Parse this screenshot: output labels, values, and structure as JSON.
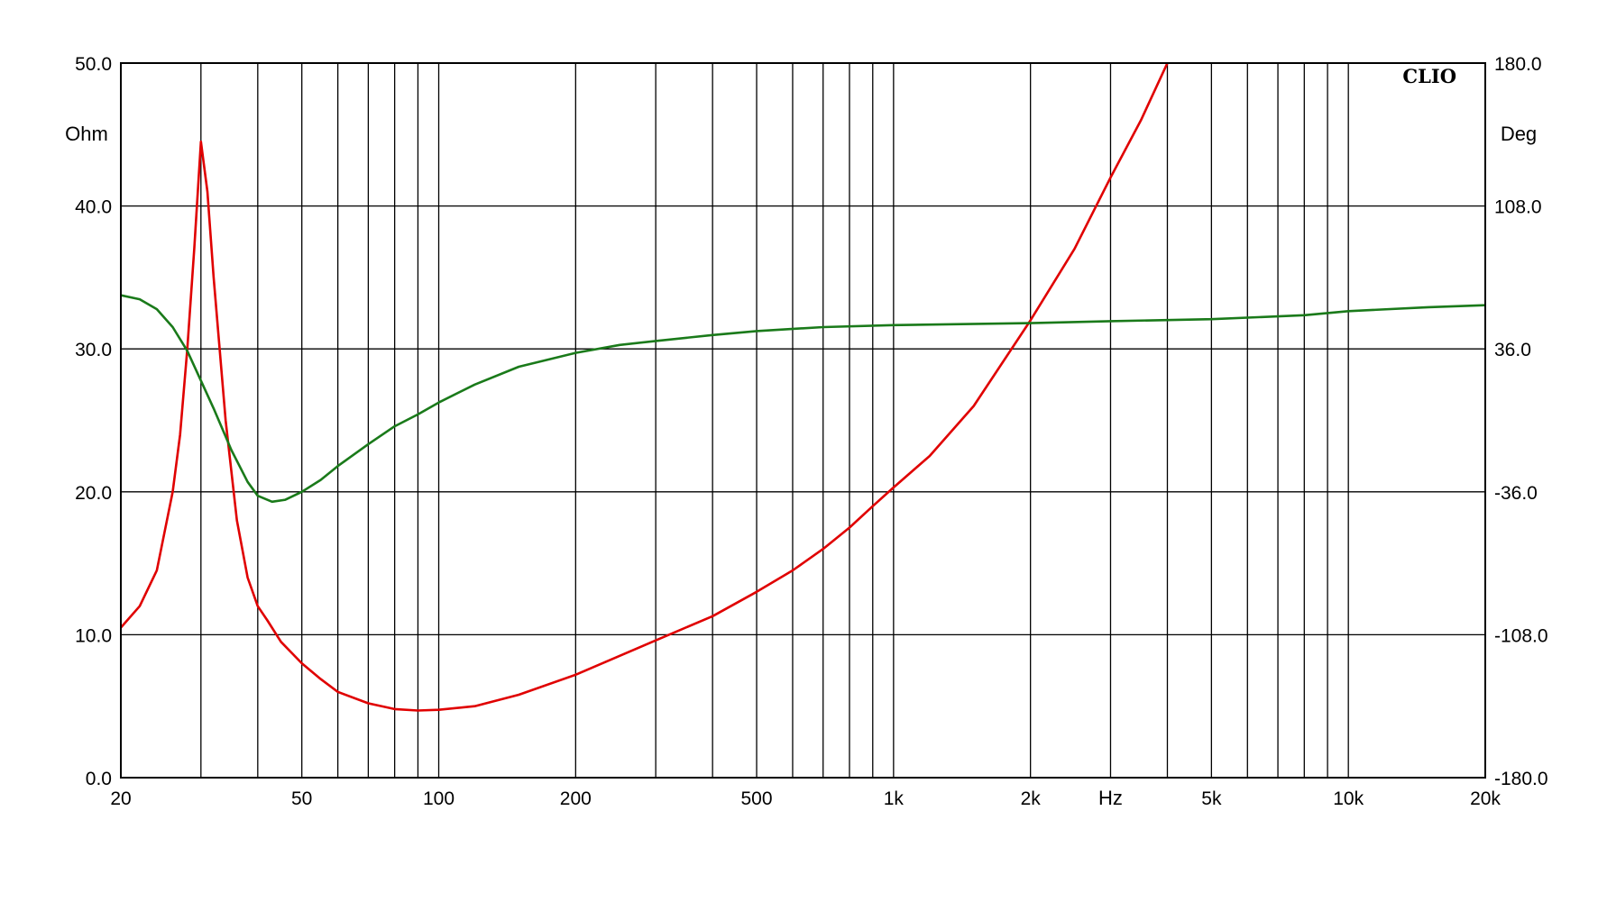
{
  "chart_data": {
    "type": "line",
    "brand": "CLIO",
    "x_unit": "Hz",
    "y_left_unit": "Ohm",
    "y_right_unit": "Deg",
    "x_scale": "log",
    "xlim": [
      20,
      20000
    ],
    "ylim_left": [
      0,
      50
    ],
    "ylim_right": [
      -180,
      180
    ],
    "x_tick_labels": [
      {
        "value": 20,
        "label": "20"
      },
      {
        "value": 50,
        "label": "50"
      },
      {
        "value": 100,
        "label": "100"
      },
      {
        "value": 200,
        "label": "200"
      },
      {
        "value": 500,
        "label": "500"
      },
      {
        "value": 1000,
        "label": "1k"
      },
      {
        "value": 2000,
        "label": "2k"
      },
      {
        "value": 5000,
        "label": "5k"
      },
      {
        "value": 10000,
        "label": "10k"
      },
      {
        "value": 20000,
        "label": "20k"
      }
    ],
    "x_unit_position": 3000,
    "y_left_ticks": [
      {
        "value": 0,
        "label": "0.0"
      },
      {
        "value": 10,
        "label": "10.0"
      },
      {
        "value": 20,
        "label": "20.0"
      },
      {
        "value": 30,
        "label": "30.0"
      },
      {
        "value": 40,
        "label": "40.0"
      },
      {
        "value": 50,
        "label": "50.0"
      }
    ],
    "y_right_ticks": [
      {
        "value": -180,
        "label": "-180.0"
      },
      {
        "value": -108,
        "label": "-108.0"
      },
      {
        "value": -36,
        "label": "-36.0"
      },
      {
        "value": 36,
        "label": "36.0"
      },
      {
        "value": 108,
        "label": "108.0"
      },
      {
        "value": 180,
        "label": "180.0"
      }
    ],
    "x_gridlines": [
      30,
      40,
      50,
      60,
      70,
      80,
      90,
      100,
      200,
      300,
      400,
      500,
      600,
      700,
      800,
      900,
      1000,
      2000,
      3000,
      4000,
      5000,
      6000,
      7000,
      8000,
      9000,
      10000
    ],
    "grid": true,
    "series": [
      {
        "axis": "left",
        "color": "#e00000",
        "points": [
          [
            20,
            10.5
          ],
          [
            22,
            12.0
          ],
          [
            24,
            14.5
          ],
          [
            26,
            20.0
          ],
          [
            27,
            24.0
          ],
          [
            28,
            30.0
          ],
          [
            29,
            37.0
          ],
          [
            30,
            44.5
          ],
          [
            31,
            41.0
          ],
          [
            32,
            35.0
          ],
          [
            34,
            25.0
          ],
          [
            36,
            18.0
          ],
          [
            38,
            14.0
          ],
          [
            40,
            12.0
          ],
          [
            42,
            11.0
          ],
          [
            45,
            9.5
          ],
          [
            50,
            8.0
          ],
          [
            55,
            6.9
          ],
          [
            60,
            6.0
          ],
          [
            70,
            5.2
          ],
          [
            80,
            4.8
          ],
          [
            90,
            4.7
          ],
          [
            100,
            4.75
          ],
          [
            120,
            5.0
          ],
          [
            150,
            5.8
          ],
          [
            200,
            7.2
          ],
          [
            300,
            9.6
          ],
          [
            400,
            11.3
          ],
          [
            500,
            13.0
          ],
          [
            600,
            14.5
          ],
          [
            700,
            16.0
          ],
          [
            800,
            17.5
          ],
          [
            900,
            19.0
          ],
          [
            1000,
            20.3
          ],
          [
            1200,
            22.5
          ],
          [
            1500,
            26.0
          ],
          [
            2000,
            32.0
          ],
          [
            2500,
            37.0
          ],
          [
            3000,
            42.0
          ],
          [
            3500,
            46.0
          ],
          [
            4000,
            50.0
          ]
        ]
      },
      {
        "axis": "right",
        "color": "#1a7a1a",
        "points": [
          [
            20,
            63
          ],
          [
            22,
            61
          ],
          [
            24,
            56
          ],
          [
            26,
            47
          ],
          [
            28,
            35
          ],
          [
            30,
            20
          ],
          [
            32,
            6
          ],
          [
            35,
            -15
          ],
          [
            38,
            -31
          ],
          [
            40,
            -38
          ],
          [
            43,
            -41
          ],
          [
            46,
            -40
          ],
          [
            50,
            -36
          ],
          [
            55,
            -30
          ],
          [
            60,
            -23
          ],
          [
            70,
            -12
          ],
          [
            80,
            -3
          ],
          [
            90,
            3
          ],
          [
            100,
            9
          ],
          [
            120,
            18
          ],
          [
            150,
            27
          ],
          [
            200,
            34
          ],
          [
            250,
            38
          ],
          [
            300,
            40
          ],
          [
            400,
            43
          ],
          [
            500,
            45
          ],
          [
            700,
            47
          ],
          [
            1000,
            48
          ],
          [
            2000,
            49
          ],
          [
            3000,
            50
          ],
          [
            5000,
            51
          ],
          [
            8000,
            53
          ],
          [
            10000,
            55
          ],
          [
            15000,
            57
          ],
          [
            20000,
            58
          ]
        ]
      }
    ]
  }
}
